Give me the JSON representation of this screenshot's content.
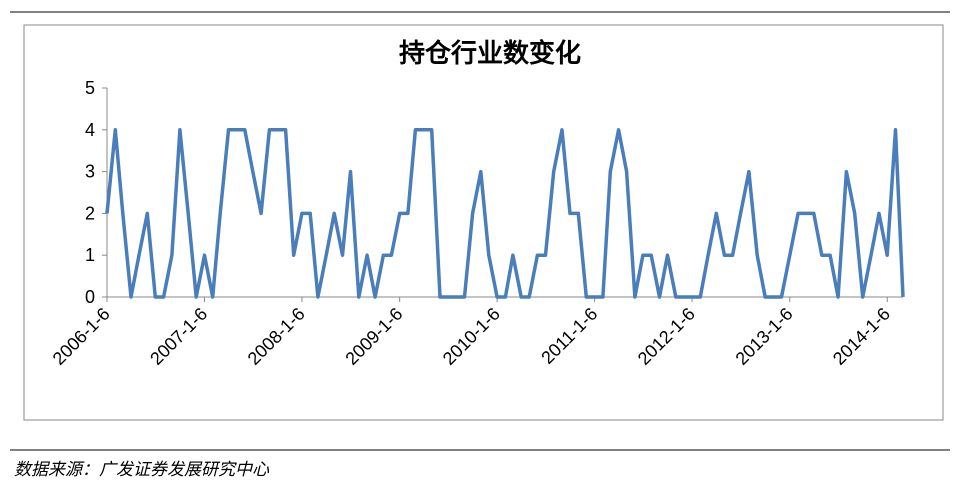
{
  "chart_data": {
    "type": "line",
    "title": "持仓行业数变化",
    "x": [
      "2006-1-6",
      "2006-2-6",
      "2006-3-6",
      "2006-4-6",
      "2006-5-6",
      "2006-6-6",
      "2006-7-6",
      "2006-8-6",
      "2006-9-6",
      "2006-10-6",
      "2006-11-6",
      "2006-12-6",
      "2007-1-6",
      "2007-2-6",
      "2007-3-6",
      "2007-4-6",
      "2007-5-6",
      "2007-6-6",
      "2007-7-6",
      "2007-8-6",
      "2007-9-6",
      "2007-10-6",
      "2007-11-6",
      "2007-12-6",
      "2008-1-6",
      "2008-2-6",
      "2008-3-6",
      "2008-4-6",
      "2008-5-6",
      "2008-6-6",
      "2008-7-6",
      "2008-8-6",
      "2008-9-6",
      "2008-10-6",
      "2008-11-6",
      "2008-12-6",
      "2009-1-6",
      "2009-2-6",
      "2009-3-6",
      "2009-4-6",
      "2009-5-6",
      "2009-6-6",
      "2009-7-6",
      "2009-8-6",
      "2009-9-6",
      "2009-10-6",
      "2009-11-6",
      "2009-12-6",
      "2010-1-6",
      "2010-2-6",
      "2010-3-6",
      "2010-4-6",
      "2010-5-6",
      "2010-6-6",
      "2010-7-6",
      "2010-8-6",
      "2010-9-6",
      "2010-10-6",
      "2010-11-6",
      "2010-12-6",
      "2011-1-6",
      "2011-2-6",
      "2011-3-6",
      "2011-4-6",
      "2011-5-6",
      "2011-6-6",
      "2011-7-6",
      "2011-8-6",
      "2011-9-6",
      "2011-10-6",
      "2011-11-6",
      "2011-12-6",
      "2012-1-6",
      "2012-2-6",
      "2012-3-6",
      "2012-4-6",
      "2012-5-6",
      "2012-6-6",
      "2012-7-6",
      "2012-8-6",
      "2012-9-6",
      "2012-10-6",
      "2012-11-6",
      "2012-12-6",
      "2013-1-6",
      "2013-2-6",
      "2013-3-6",
      "2013-4-6",
      "2013-5-6",
      "2013-6-6",
      "2013-7-6",
      "2013-8-6",
      "2013-9-6",
      "2013-10-6",
      "2013-11-6",
      "2013-12-6",
      "2014-1-6",
      "2014-2-6",
      "2014-3-6"
    ],
    "series": [
      {
        "color": "#4a7ebb",
        "values": [
          2,
          4,
          2,
          0,
          1,
          2,
          0,
          0,
          1,
          4,
          2,
          0,
          1,
          0,
          2,
          4,
          4,
          4,
          3,
          2,
          4,
          4,
          4,
          1,
          2,
          2,
          0,
          1,
          2,
          1,
          3,
          0,
          1,
          0,
          1,
          1,
          2,
          2,
          4,
          4,
          4,
          0,
          0,
          0,
          0,
          2,
          3,
          1,
          0,
          0,
          1,
          0,
          0,
          1,
          1,
          3,
          4,
          2,
          2,
          0,
          0,
          0,
          3,
          4,
          3,
          0,
          1,
          1,
          0,
          1,
          0,
          0,
          0,
          0,
          1,
          2,
          1,
          1,
          2,
          3,
          1,
          0,
          0,
          0,
          1,
          2,
          2,
          2,
          1,
          1,
          0,
          3,
          2,
          0,
          1,
          2,
          1,
          4,
          0
        ]
      }
    ],
    "xlim": [
      "2006-1-6",
      "2014-3-6"
    ],
    "xticks": [
      "2006-1-6",
      "2007-1-6",
      "2008-1-6",
      "2009-1-6",
      "2010-1-6",
      "2011-1-6",
      "2012-1-6",
      "2013-1-6",
      "2014-1-6"
    ],
    "ylim": [
      0,
      5
    ],
    "yticks": [
      0,
      1,
      2,
      3,
      4,
      5
    ],
    "grid": false
  },
  "source": "数据来源：广发证券发展研究中心"
}
